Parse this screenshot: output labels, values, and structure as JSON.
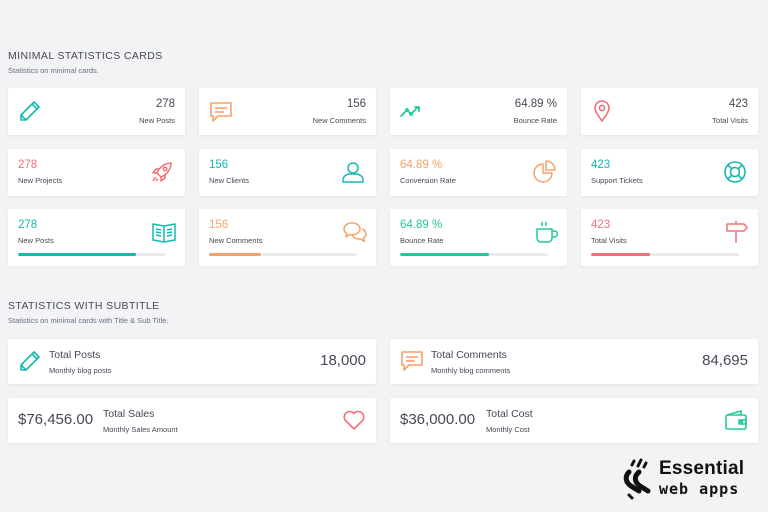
{
  "colors": {
    "teal": "#16b9b0",
    "orange": "#f8a169",
    "pink": "#f2707a",
    "green": "#22c99a",
    "track": "#e9ebef"
  },
  "section1": {
    "title": "MINIMAL STATISTICS CARDS",
    "subtitle": "Statistics on minimal cards."
  },
  "row1": [
    {
      "value": "278",
      "label": "New Posts",
      "icon": "pencil-icon"
    },
    {
      "value": "156",
      "label": "New Comments",
      "icon": "speech-bubble-icon"
    },
    {
      "value": "64.89 %",
      "label": "Bounce Rate",
      "icon": "trend-line-icon"
    },
    {
      "value": "423",
      "label": "Total Visits",
      "icon": "map-pin-icon"
    }
  ],
  "row2": [
    {
      "value": "278",
      "label": "New Projects",
      "icon": "rocket-icon"
    },
    {
      "value": "156",
      "label": "New Clients",
      "icon": "user-icon"
    },
    {
      "value": "64.89 %",
      "label": "Conversion Rate",
      "icon": "pie-chart-icon"
    },
    {
      "value": "423",
      "label": "Support Tickets",
      "icon": "life-ring-icon"
    }
  ],
  "row3": [
    {
      "value": "278",
      "label": "New Posts",
      "icon": "book-icon",
      "progress": 0.8
    },
    {
      "value": "156",
      "label": "New Comments",
      "icon": "chat-bubbles-icon",
      "progress": 0.35
    },
    {
      "value": "64.89 %",
      "label": "Bounce Rate",
      "icon": "cup-icon",
      "progress": 0.6
    },
    {
      "value": "423",
      "label": "Total Visits",
      "icon": "signpost-icon",
      "progress": 0.4
    }
  ],
  "section2": {
    "title": "STATISTICS WITH SUBTITLE",
    "subtitle": "Statistics on minimal cards with Title & Sub Title."
  },
  "subtitle_cards": [
    {
      "title": "Total Posts",
      "subtitle": "Monthly blog posts",
      "value": "18,000",
      "icon": "pencil-icon"
    },
    {
      "title": "Total Comments",
      "subtitle": "Monthly blog comments",
      "value": "84,695",
      "icon": "speech-bubble-icon"
    },
    {
      "title": "Total Sales",
      "subtitle": "Monthly Sales Amount",
      "value": "$76,456.00",
      "icon": "heart-icon"
    },
    {
      "title": "Total Cost",
      "subtitle": "Monthly Cost",
      "value": "$36,000.00",
      "icon": "wallet-icon"
    }
  ],
  "brand": {
    "line1": "Essential",
    "line2": "web apps"
  }
}
